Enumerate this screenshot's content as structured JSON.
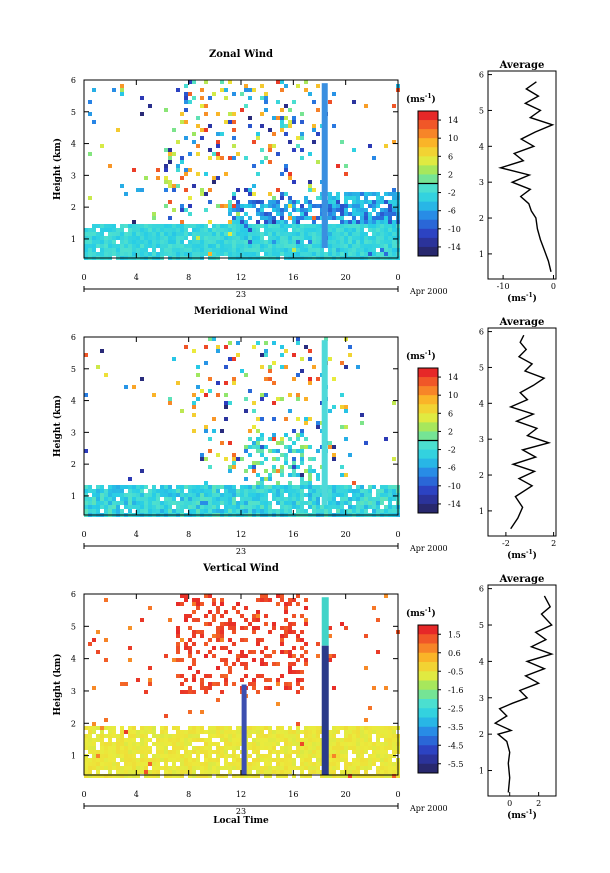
{
  "chart_data": [
    {
      "type": "heatmap",
      "title": "Zonal Wind",
      "ylabel": "Height (km)",
      "unit_label": "(ms",
      "unit_exp": "-1",
      "unit_close": ")",
      "xlim": [
        0,
        24
      ],
      "ylim": [
        0.4,
        6
      ],
      "x_ticks": [
        "0",
        "4",
        "8",
        "12",
        "16",
        "20",
        "0"
      ],
      "y_ticks": [
        "1",
        "2",
        "3",
        "4",
        "5",
        "6"
      ],
      "date_axis_label": "23",
      "date_suffix": "Apr 2000",
      "colorbar_ticks": [
        "14",
        "10",
        "6",
        "2",
        "-2",
        "-6",
        "-10",
        "-14"
      ],
      "colorbar_range": [
        -16,
        16
      ],
      "average_panel": {
        "title": "Average",
        "xlabel": "(ms",
        "xlabel_exp": "-1",
        "xlabel_close": ")",
        "xlim": [
          -13,
          0.5
        ],
        "x_ticks": [
          "-10",
          "0"
        ],
        "x_tick_values": [
          -10,
          0
        ],
        "y_ticks": [
          "1",
          "2",
          "3",
          "4",
          "5",
          "6"
        ],
        "profile": [
          [
            -0.5,
            0.5
          ],
          [
            -1,
            0.8
          ],
          [
            -1.8,
            1.1
          ],
          [
            -2.6,
            1.4
          ],
          [
            -3.2,
            1.7
          ],
          [
            -3.5,
            2.0
          ],
          [
            -4.4,
            2.2
          ],
          [
            -4.9,
            2.4
          ],
          [
            -6.5,
            2.6
          ],
          [
            -4.6,
            2.8
          ],
          [
            -8.2,
            3.0
          ],
          [
            -4.8,
            3.2
          ],
          [
            -10.5,
            3.4
          ],
          [
            -6.0,
            3.6
          ],
          [
            -7.8,
            3.8
          ],
          [
            -3.9,
            4.0
          ],
          [
            -6.4,
            4.2
          ],
          [
            -3.6,
            4.4
          ],
          [
            -0.2,
            4.6
          ],
          [
            -4.6,
            4.8
          ],
          [
            -2.6,
            5.0
          ],
          [
            -5.6,
            5.2
          ],
          [
            -3.0,
            5.4
          ],
          [
            -5.4,
            5.6
          ],
          [
            -3.4,
            5.8
          ]
        ]
      }
    },
    {
      "type": "heatmap",
      "title": "Meridional Wind",
      "ylabel": "Height (km)",
      "unit_label": "(ms",
      "unit_exp": "-1",
      "unit_close": ")",
      "xlim": [
        0,
        24
      ],
      "ylim": [
        0.4,
        6
      ],
      "x_ticks": [
        "0",
        "4",
        "8",
        "12",
        "16",
        "20",
        "0"
      ],
      "y_ticks": [
        "1",
        "2",
        "3",
        "4",
        "5",
        "6"
      ],
      "date_axis_label": "23",
      "date_suffix": "Apr 2000",
      "colorbar_ticks": [
        "14",
        "10",
        "6",
        "2",
        "-2",
        "-6",
        "-10",
        "-14"
      ],
      "colorbar_range": [
        -16,
        16
      ],
      "average_panel": {
        "title": "Average",
        "xlabel": "(ms",
        "xlabel_exp": "-1",
        "xlabel_close": ")",
        "xlim": [
          -3.5,
          2.2
        ],
        "x_ticks": [
          "-2",
          "2"
        ],
        "x_tick_values": [
          -2,
          2
        ],
        "y_ticks": [
          "1",
          "2",
          "3",
          "4",
          "5",
          "6"
        ],
        "profile": [
          [
            -1.6,
            0.5
          ],
          [
            -1.0,
            0.8
          ],
          [
            -0.6,
            1.1
          ],
          [
            -1.2,
            1.4
          ],
          [
            0.2,
            1.7
          ],
          [
            -0.9,
            1.9
          ],
          [
            0.4,
            2.1
          ],
          [
            -1.4,
            2.3
          ],
          [
            0.5,
            2.5
          ],
          [
            -0.6,
            2.7
          ],
          [
            1.6,
            2.9
          ],
          [
            -0.2,
            3.1
          ],
          [
            0.6,
            3.3
          ],
          [
            -1.1,
            3.5
          ],
          [
            0.3,
            3.7
          ],
          [
            -1.6,
            3.9
          ],
          [
            -0.2,
            4.1
          ],
          [
            -0.8,
            4.3
          ],
          [
            0.3,
            4.5
          ],
          [
            1.2,
            4.7
          ],
          [
            -0.4,
            4.9
          ],
          [
            0.2,
            5.1
          ],
          [
            -0.9,
            5.3
          ],
          [
            -0.3,
            5.5
          ],
          [
            -0.8,
            5.7
          ],
          [
            -0.5,
            5.9
          ]
        ]
      }
    },
    {
      "type": "heatmap",
      "title": "Vertical Wind",
      "xlabel": "Local Time",
      "ylabel": "Height (km)",
      "unit_label": "(ms",
      "unit_exp": "-1",
      "unit_close": ")",
      "xlim": [
        0,
        24
      ],
      "ylim": [
        0.4,
        6
      ],
      "x_ticks": [
        "0",
        "4",
        "8",
        "12",
        "16",
        "20",
        "0"
      ],
      "y_ticks": [
        "1",
        "2",
        "3",
        "4",
        "5",
        "6"
      ],
      "date_axis_label": "23",
      "date_suffix": "Apr 2000",
      "colorbar_ticks": [
        "1.5",
        "0.6",
        "-0.5",
        "-1.6",
        "-2.5",
        "-3.5",
        "-4.5",
        "-5.5"
      ],
      "colorbar_range": [
        -6,
        2
      ],
      "average_panel": {
        "title": "Average",
        "xlabel": "(ms",
        "xlabel_exp": "-1",
        "xlabel_close": ")",
        "xlim": [
          -1.5,
          3.2
        ],
        "x_ticks": [
          "0",
          "2"
        ],
        "x_tick_values": [
          0,
          2
        ],
        "y_ticks": [
          "1",
          "2",
          "3",
          "4",
          "5",
          "6"
        ],
        "profile": [
          [
            -0.1,
            0.4
          ],
          [
            0.0,
            0.8
          ],
          [
            -0.1,
            1.2
          ],
          [
            0.0,
            1.5
          ],
          [
            -0.2,
            1.8
          ],
          [
            -0.8,
            2.0
          ],
          [
            0.1,
            2.1
          ],
          [
            -1.0,
            2.3
          ],
          [
            -0.2,
            2.5
          ],
          [
            -0.7,
            2.7
          ],
          [
            0.2,
            2.85
          ],
          [
            1.2,
            3.0
          ],
          [
            0.7,
            3.2
          ],
          [
            2.0,
            3.4
          ],
          [
            1.1,
            3.6
          ],
          [
            2.4,
            3.8
          ],
          [
            1.2,
            4.0
          ],
          [
            2.9,
            4.2
          ],
          [
            1.5,
            4.4
          ],
          [
            2.5,
            4.6
          ],
          [
            1.8,
            4.8
          ],
          [
            2.9,
            5.0
          ],
          [
            2.2,
            5.3
          ],
          [
            2.8,
            5.5
          ],
          [
            2.4,
            5.8
          ]
        ]
      }
    }
  ]
}
